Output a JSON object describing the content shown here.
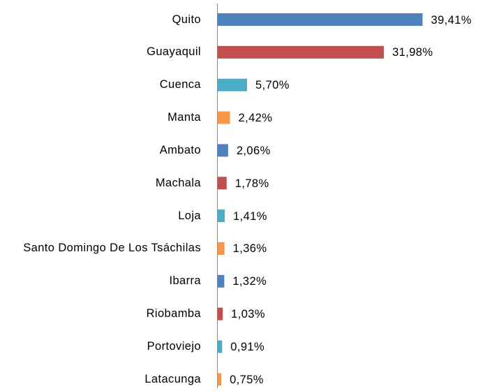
{
  "chart_data": {
    "type": "bar",
    "orientation": "horizontal",
    "categories": [
      "Quito",
      "Guayaquil",
      "Cuenca",
      "Manta",
      "Ambato",
      "Machala",
      "Loja",
      "Santo Domingo De Los Tsáchilas",
      "Ibarra",
      "Riobamba",
      "Portoviejo",
      "Latacunga"
    ],
    "values": [
      39.41,
      31.98,
      5.7,
      2.42,
      2.06,
      1.78,
      1.41,
      1.36,
      1.32,
      1.03,
      0.91,
      0.75
    ],
    "value_labels": [
      "39,41%",
      "31,98%",
      "5,70%",
      "2,42%",
      "2,06%",
      "1,78%",
      "1,41%",
      "1,36%",
      "1,32%",
      "1,03%",
      "0,91%",
      "0,75%"
    ],
    "colors": [
      "#4f81bd",
      "#c0504d",
      "#4bacc6",
      "#f79646",
      "#4f81bd",
      "#c0504d",
      "#4bacc6",
      "#f79646",
      "#4f81bd",
      "#c0504d",
      "#4bacc6",
      "#f79646"
    ]
  }
}
